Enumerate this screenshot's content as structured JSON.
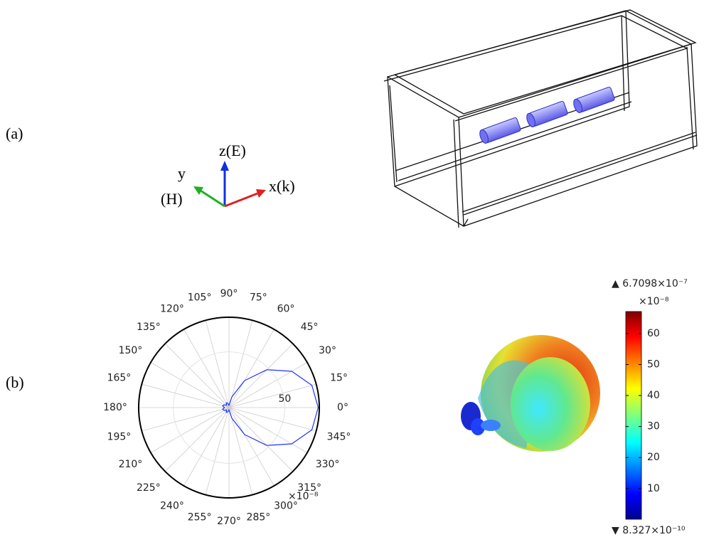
{
  "labels": {
    "a": "(a)",
    "b": "(b)"
  },
  "axes_triad": {
    "z": "z(E)",
    "y": "y",
    "y_field": "(H)",
    "x": "x(k)"
  },
  "chart_data": {
    "type": "polar",
    "theta": [
      0,
      15,
      30,
      45,
      60,
      75,
      90,
      105,
      120,
      135,
      150,
      165,
      180,
      195,
      210,
      225,
      240,
      255,
      270,
      285,
      300,
      315,
      330,
      345
    ],
    "r": [
      80,
      77,
      65,
      48,
      28,
      10,
      2,
      4,
      5,
      3,
      5,
      6,
      4,
      6,
      5,
      3,
      5,
      4,
      2,
      10,
      28,
      48,
      65,
      77
    ],
    "color": "#2233ff",
    "rlim": [
      0,
      81
    ],
    "rticks": [
      50
    ],
    "angle_ticks": [
      {
        "value": 0,
        "label": "0°"
      },
      {
        "value": 15,
        "label": "15°"
      },
      {
        "value": 30,
        "label": "30°"
      },
      {
        "value": 45,
        "label": "45°"
      },
      {
        "value": 60,
        "label": "60°"
      },
      {
        "value": 75,
        "label": "75°"
      },
      {
        "value": 90,
        "label": "90°"
      },
      {
        "value": 105,
        "label": "105°"
      },
      {
        "value": 120,
        "label": "120°"
      },
      {
        "value": 135,
        "label": "135°"
      },
      {
        "value": 150,
        "label": "150°"
      },
      {
        "value": 165,
        "label": "165°"
      },
      {
        "value": 180,
        "label": "180°"
      },
      {
        "value": 195,
        "label": "195°"
      },
      {
        "value": 210,
        "label": "210°"
      },
      {
        "value": 225,
        "label": "225°"
      },
      {
        "value": 240,
        "label": "240°"
      },
      {
        "value": 255,
        "label": "255°"
      },
      {
        "value": 270,
        "label": "270°"
      },
      {
        "value": 285,
        "label": "285°"
      },
      {
        "value": 300,
        "label": "300°"
      },
      {
        "value": 315,
        "label": "315°"
      },
      {
        "value": 330,
        "label": "330°"
      },
      {
        "value": 345,
        "label": "345°"
      }
    ],
    "multiplier": "×10⁻⁸"
  },
  "colorbar": {
    "max_label": "▲ 6.7098×10⁻⁷",
    "multiplier": "×10⁻⁸",
    "min_label": "▼ 8.327×10⁻¹⁰",
    "lim": [
      0.08327,
      67.098
    ],
    "ticks": [
      10,
      20,
      30,
      40,
      50,
      60
    ]
  }
}
